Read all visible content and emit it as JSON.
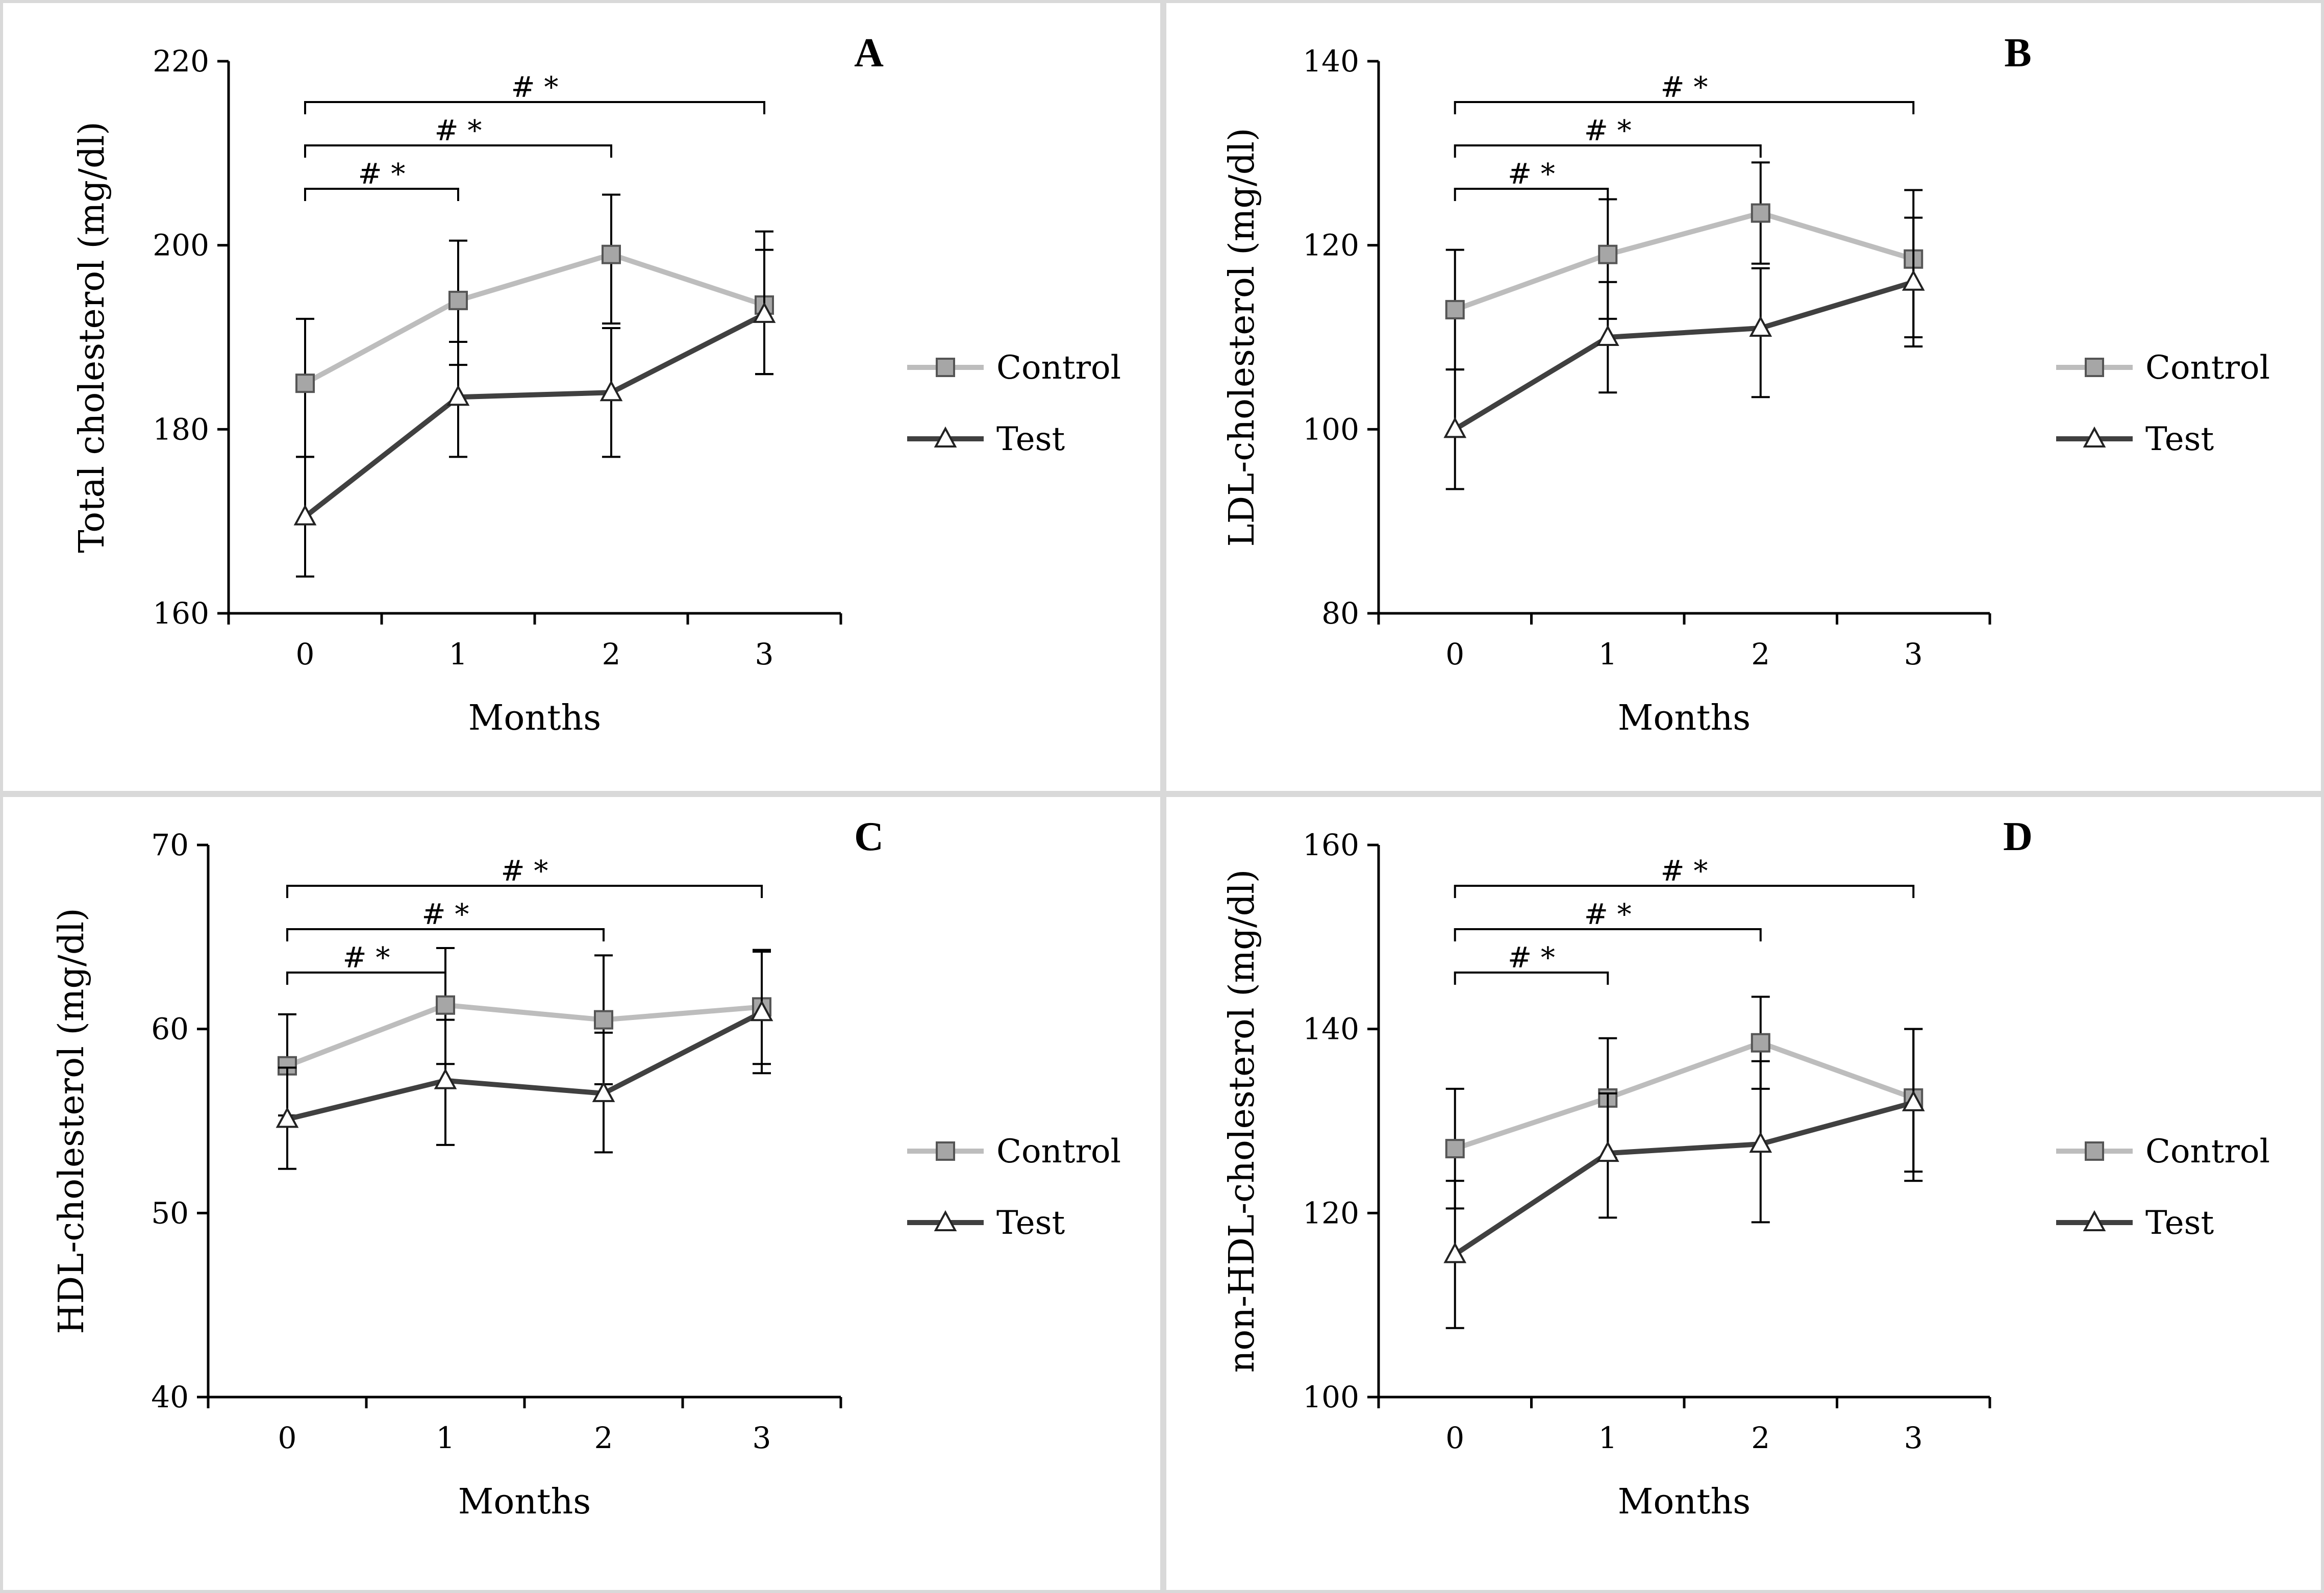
{
  "colors": {
    "control_line": "#bdbdbd",
    "control_marker": "#a6a6a6",
    "test_line": "#404040",
    "test_marker": "#ffffff"
  },
  "chart_data": [
    {
      "type": "line",
      "panel": "A",
      "xlabel": "Months",
      "ylabel": "Total cholesterol (mg/dl)",
      "ylim": [
        160,
        220
      ],
      "yticks": [
        160,
        180,
        200,
        220
      ],
      "categories": [
        "0",
        "1",
        "2",
        "3"
      ],
      "legend": [
        "Control",
        "Test"
      ],
      "series": [
        {
          "name": "Control",
          "values": [
            185,
            194,
            199,
            193.5
          ],
          "err_upper": [
            192,
            200.5,
            205.5,
            201.5
          ],
          "err_lower": [
            177,
            187,
            191.5,
            186
          ]
        },
        {
          "name": "Test",
          "values": [
            170.5,
            183.5,
            184,
            192.5
          ],
          "err_upper": [
            177,
            189.5,
            191,
            199.5
          ],
          "err_lower": [
            164,
            177,
            177,
            186
          ]
        }
      ],
      "significance": [
        {
          "from": 0,
          "to": 1,
          "label": "# *"
        },
        {
          "from": 0,
          "to": 2,
          "label": "# *"
        },
        {
          "from": 0,
          "to": 3,
          "label": "# *"
        }
      ]
    },
    {
      "type": "line",
      "panel": "B",
      "xlabel": "Months",
      "ylabel": "LDL-cholesterol (mg/dl)",
      "ylim": [
        80,
        140
      ],
      "yticks": [
        80,
        100,
        120,
        140
      ],
      "categories": [
        "0",
        "1",
        "2",
        "3"
      ],
      "legend": [
        "Control",
        "Test"
      ],
      "series": [
        {
          "name": "Control",
          "values": [
            113,
            119,
            123.5,
            118.5
          ],
          "err_upper": [
            119.5,
            125,
            129,
            126
          ],
          "err_lower": [
            106.5,
            112,
            118,
            110
          ]
        },
        {
          "name": "Test",
          "values": [
            100,
            110,
            111,
            116
          ],
          "err_upper": [
            106.5,
            116,
            117.5,
            123
          ],
          "err_lower": [
            93.5,
            104,
            103.5,
            109
          ]
        }
      ],
      "significance": [
        {
          "from": 0,
          "to": 1,
          "label": "# *"
        },
        {
          "from": 0,
          "to": 2,
          "label": "# *"
        },
        {
          "from": 0,
          "to": 3,
          "label": "# *"
        }
      ]
    },
    {
      "type": "line",
      "panel": "C",
      "xlabel": "Months",
      "ylabel": "HDL-cholesterol (mg/dl)",
      "ylim": [
        40,
        70
      ],
      "yticks": [
        40,
        50,
        60,
        70
      ],
      "categories": [
        "0",
        "1",
        "2",
        "3"
      ],
      "legend": [
        "Control",
        "Test"
      ],
      "series": [
        {
          "name": "Control",
          "values": [
            58,
            61.3,
            60.5,
            61.2
          ],
          "err_upper": [
            60.8,
            64.4,
            64,
            64.3
          ],
          "err_lower": [
            55.3,
            58.1,
            57,
            58.1
          ]
        },
        {
          "name": "Test",
          "values": [
            55.1,
            57.2,
            56.5,
            60.9
          ],
          "err_upper": [
            57.9,
            60.5,
            59.8,
            64.2
          ],
          "err_lower": [
            52.4,
            53.7,
            53.3,
            57.6
          ]
        }
      ],
      "significance": [
        {
          "from": 0,
          "to": 1,
          "label": "# *"
        },
        {
          "from": 0,
          "to": 2,
          "label": "# *"
        },
        {
          "from": 0,
          "to": 3,
          "label": "# *"
        }
      ]
    },
    {
      "type": "line",
      "panel": "D",
      "xlabel": "Months",
      "ylabel": "non-HDL-cholesterol (mg/dl)",
      "ylim": [
        100,
        160
      ],
      "yticks": [
        100,
        120,
        140,
        160
      ],
      "categories": [
        "0",
        "1",
        "2",
        "3"
      ],
      "legend": [
        "Control",
        "Test"
      ],
      "series": [
        {
          "name": "Control",
          "values": [
            127,
            132.5,
            138.5,
            132.5
          ],
          "err_upper": [
            133.5,
            139,
            143.5,
            140
          ],
          "err_lower": [
            120.5,
            126,
            133.5,
            124.5
          ]
        },
        {
          "name": "Test",
          "values": [
            115.5,
            126.5,
            127.5,
            132
          ],
          "err_upper": [
            123.5,
            133,
            136.5,
            140
          ],
          "err_lower": [
            107.5,
            119.5,
            119,
            123.5
          ]
        }
      ],
      "significance": [
        {
          "from": 0,
          "to": 1,
          "label": "# *"
        },
        {
          "from": 0,
          "to": 2,
          "label": "# *"
        },
        {
          "from": 0,
          "to": 3,
          "label": "# *"
        }
      ]
    }
  ]
}
